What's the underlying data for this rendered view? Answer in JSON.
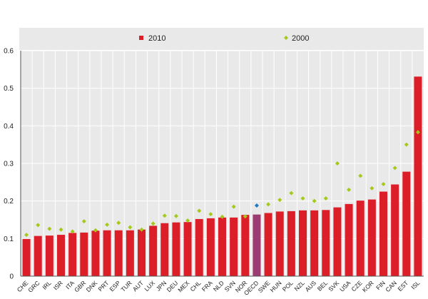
{
  "chart_data": {
    "type": "bar",
    "title": "",
    "xlabel": "",
    "ylabel": "",
    "ylim": [
      0,
      0.6
    ],
    "yticks": [
      "0",
      "0.1",
      "0.2",
      "0.3",
      "0.4",
      "0.5",
      "0.6"
    ],
    "grid": true,
    "legend_position": "top-center",
    "categories": [
      "CHE",
      "GRC",
      "IRL",
      "ISR",
      "ITA",
      "GBR",
      "DNK",
      "PRT",
      "ESP",
      "TUR",
      "AUT",
      "LUX",
      "JPN",
      "DEU",
      "MEX",
      "CHL",
      "FRA",
      "NLD",
      "SVN",
      "NOR",
      "OECD",
      "SWE",
      "HUN",
      "POL",
      "NZL",
      "AUS",
      "BEL",
      "SVK",
      "USA",
      "CZE",
      "KOR",
      "FIN",
      "CAN",
      "EST",
      "ISL"
    ],
    "highlight_category": "OECD",
    "series": [
      {
        "name": "2010",
        "kind": "bar",
        "color": "#dc1e28",
        "highlight_color": "#9b3d72",
        "values": [
          0.099,
          0.107,
          0.108,
          0.11,
          0.115,
          0.116,
          0.121,
          0.122,
          0.122,
          0.122,
          0.124,
          0.134,
          0.141,
          0.143,
          0.144,
          0.152,
          0.154,
          0.156,
          0.156,
          0.163,
          0.164,
          0.168,
          0.172,
          0.173,
          0.175,
          0.175,
          0.176,
          0.183,
          0.192,
          0.201,
          0.204,
          0.225,
          0.244,
          0.278,
          0.531
        ]
      },
      {
        "name": "2000",
        "kind": "marker",
        "color": "#a4c91a",
        "highlight_color": "#1f7bc0",
        "values": [
          0.11,
          0.136,
          0.126,
          0.124,
          0.119,
          0.146,
          0.122,
          0.137,
          0.142,
          0.13,
          0.124,
          0.14,
          0.161,
          0.16,
          0.148,
          0.174,
          0.165,
          0.158,
          0.185,
          0.159,
          0.188,
          0.191,
          0.203,
          0.221,
          0.207,
          0.2,
          0.207,
          0.3,
          0.23,
          0.267,
          0.234,
          0.245,
          0.288,
          0.35,
          0.383
        ]
      }
    ]
  }
}
